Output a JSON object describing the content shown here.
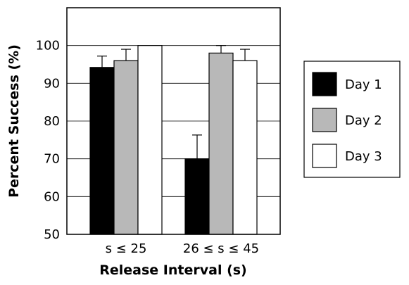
{
  "chart_data": {
    "type": "bar",
    "xlabel": "Release Interval (s)",
    "ylabel": "Percent Success (%)",
    "ylim": [
      50,
      110
    ],
    "yticks": [
      50,
      60,
      70,
      80,
      90,
      100
    ],
    "grid": true,
    "legend_position": "right",
    "categories": [
      "s ≤ 25",
      "26 ≤ s ≤ 45"
    ],
    "series": [
      {
        "name": "Day 1",
        "color": "#000000",
        "values": [
          94.2,
          70.0
        ],
        "errors": [
          3.0,
          6.3
        ]
      },
      {
        "name": "Day 2",
        "color": "#b8b8b8",
        "values": [
          96.0,
          98.0
        ],
        "errors": [
          3.0,
          2.0
        ]
      },
      {
        "name": "Day 3",
        "color": "#ffffff",
        "values": [
          100.0,
          96.0
        ],
        "errors": [
          0,
          3.0
        ]
      }
    ]
  }
}
